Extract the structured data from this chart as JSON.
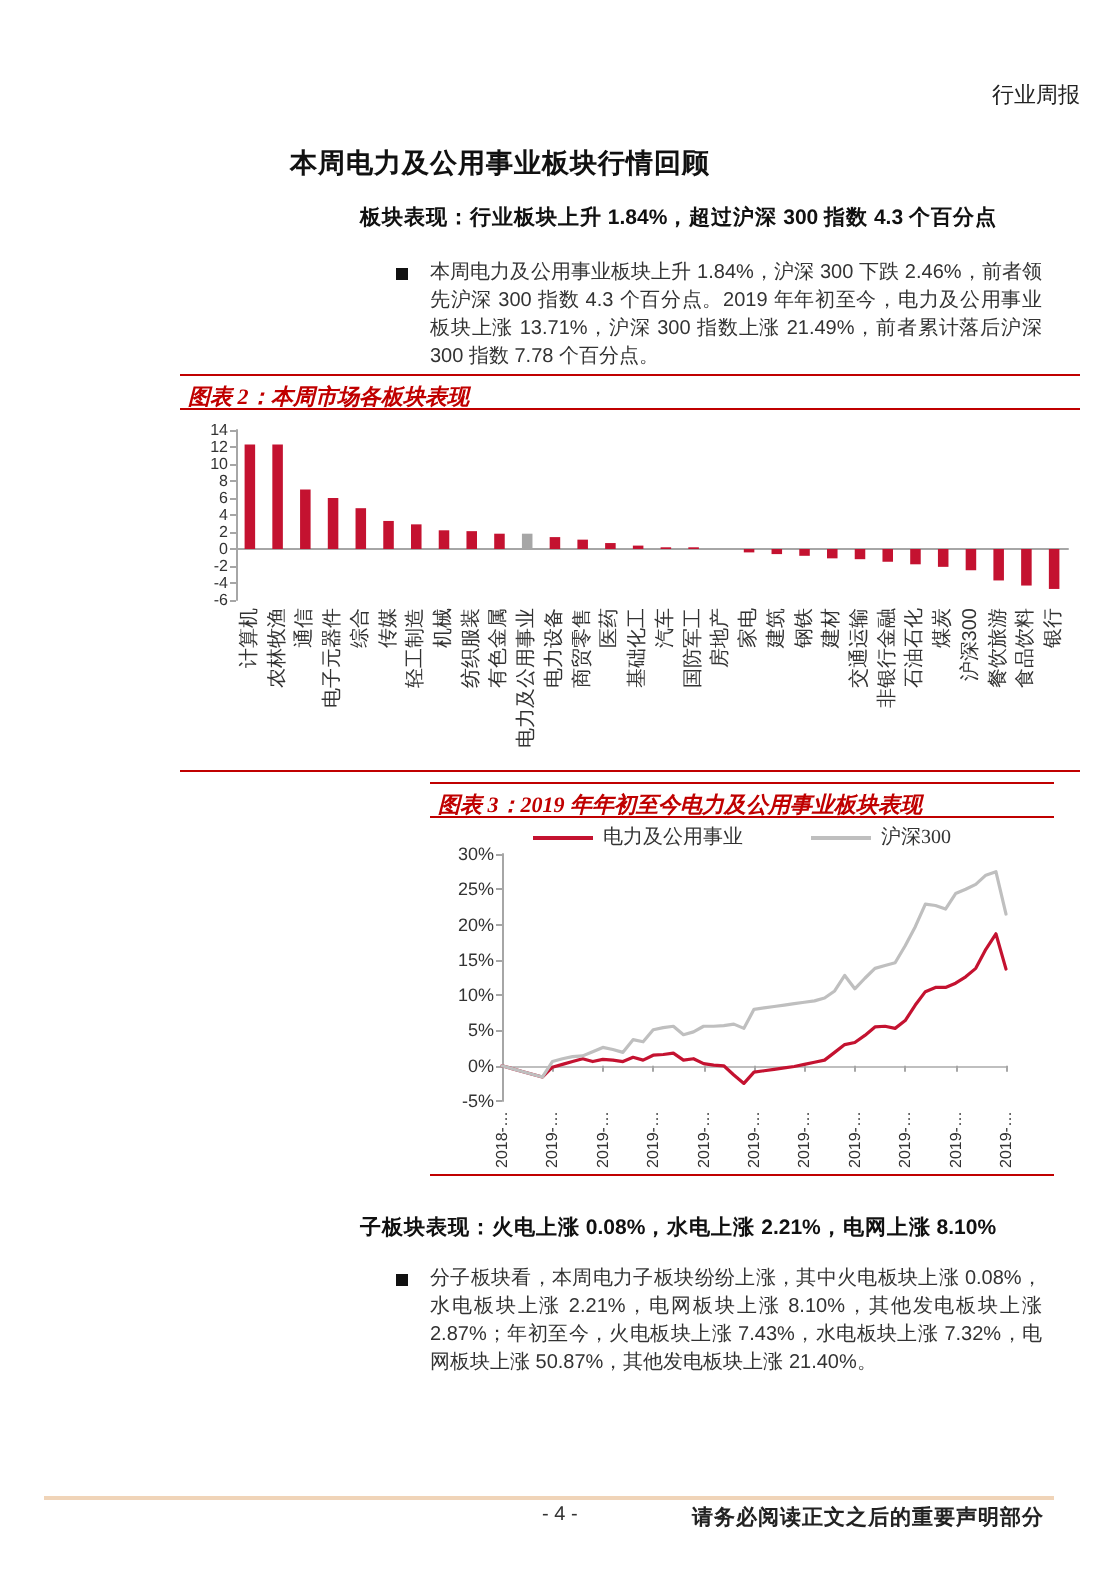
{
  "chart_data": [
    {
      "type": "bar",
      "title": "图表 2：本周市场各板块表现",
      "categories": [
        "计算机",
        "农林牧渔",
        "通信",
        "电子元器件",
        "综合",
        "传媒",
        "轻工制造",
        "机械",
        "纺织服装",
        "有色金属",
        "电力及公用事业",
        "电力设备",
        "商贸零售",
        "医药",
        "基础化工",
        "汽车",
        "国防军工",
        "房地产",
        "家电",
        "建筑",
        "钢铁",
        "建材",
        "交通运输",
        "非银行金融",
        "石油石化",
        "煤炭",
        "沪深300",
        "餐饮旅游",
        "食品饮料",
        "银行"
      ],
      "values": [
        12.3,
        12.3,
        7.0,
        6.0,
        4.8,
        3.3,
        2.9,
        2.2,
        2.1,
        1.8,
        1.8,
        1.4,
        1.1,
        0.7,
        0.4,
        0.2,
        0.2,
        0.0,
        -0.4,
        -0.6,
        -0.8,
        -1.1,
        -1.2,
        -1.5,
        -1.8,
        -2.1,
        -2.5,
        -3.7,
        -4.3,
        -4.7
      ],
      "colors": [
        "#c41230",
        "#c41230",
        "#c41230",
        "#c41230",
        "#c41230",
        "#c41230",
        "#c41230",
        "#c41230",
        "#c41230",
        "#c41230",
        "#a6a6a6",
        "#c41230",
        "#c41230",
        "#c41230",
        "#c41230",
        "#c41230",
        "#c41230",
        "#c41230",
        "#c41230",
        "#c41230",
        "#c41230",
        "#c41230",
        "#c41230",
        "#c41230",
        "#c41230",
        "#c41230",
        "#c41230",
        "#c41230",
        "#c41230",
        "#c41230"
      ],
      "ylim": [
        -6,
        14
      ],
      "yticks": [
        -6,
        -4,
        -2,
        0,
        2,
        4,
        6,
        8,
        10,
        12,
        14
      ],
      "annotations": [
        "行业周报",
        "本周电力及公用事业板块行情回顾",
        "板块表现：行业板块上升 1.84%，超过沪深 300 指数 4.3 个百分点",
        "本周电力及公用事业板块上升 1.84%，沪深 300 下跌 2.46%，前者领先沪深 300 指数 4.3 个百分点。2019 年年初至今，电力及公用事业板块上涨 13.71%，沪深 300 指数上涨 21.49%，前者累计落后沪深 300 指数 7.78 个百分点。"
      ]
    },
    {
      "type": "line",
      "title": "图表 3：2019 年年初至今电力及公用事业板块表现",
      "categories": [
        "2018-…",
        null,
        null,
        null,
        null,
        "2019-…",
        null,
        null,
        null,
        null,
        "2019-…",
        null,
        null,
        null,
        null,
        "2019-…",
        null,
        null,
        null,
        null,
        "2019-…",
        null,
        null,
        null,
        null,
        "2019-…",
        null,
        null,
        null,
        null,
        "2019-…",
        null,
        null,
        null,
        null,
        "2019-…",
        null,
        null,
        null,
        null,
        "2019-…",
        null,
        null,
        null,
        null,
        "2019-…",
        null,
        null,
        null,
        null,
        "2019-…"
      ],
      "series": [
        {
          "name": "电力及公用事业",
          "color": "#c41230",
          "values": [
            0,
            -0.4,
            -0.8,
            -1.2,
            -1.6,
            -0.2,
            0.2,
            0.6,
            1.0,
            0.6,
            0.9,
            0.8,
            0.6,
            1.2,
            0.8,
            1.5,
            1.6,
            1.8,
            0.8,
            1.0,
            0.3,
            0.1,
            0.0,
            -1.3,
            -2.5,
            -0.9,
            -0.7,
            -0.5,
            -0.3,
            -0.1,
            0.2,
            0.5,
            0.8,
            1.9,
            3.0,
            3.3,
            4.3,
            5.5,
            5.6,
            5.3,
            6.4,
            8.6,
            10.5,
            11.1,
            11.1,
            11.7,
            12.6,
            13.8,
            16.5,
            18.7,
            13.7
          ]
        },
        {
          "name": "沪深300",
          "color": "#bfbfbf",
          "values": [
            0,
            -0.4,
            -0.8,
            -1.2,
            -1.6,
            0.6,
            1.0,
            1.3,
            1.4,
            2.0,
            2.6,
            2.3,
            1.9,
            3.7,
            3.4,
            5.1,
            5.4,
            5.6,
            4.4,
            4.8,
            5.6,
            5.6,
            5.7,
            5.9,
            5.3,
            8.0,
            8.2,
            8.4,
            8.6,
            8.8,
            9.0,
            9.2,
            9.6,
            10.6,
            12.8,
            10.9,
            12.4,
            13.8,
            14.2,
            14.6,
            17.0,
            19.7,
            22.9,
            22.7,
            22.2,
            24.4,
            25.0,
            25.7,
            27.0,
            27.5,
            21.5
          ]
        }
      ],
      "ylim": [
        -5,
        30
      ],
      "yticks": [
        {
          "value": -5,
          "label": "-5%"
        },
        {
          "value": 0,
          "label": "0%"
        },
        {
          "value": 5,
          "label": "5%"
        },
        {
          "value": 10,
          "label": "10%"
        },
        {
          "value": 15,
          "label": "15%"
        },
        {
          "value": 20,
          "label": "20%"
        },
        {
          "value": 25,
          "label": "25%"
        },
        {
          "value": 30,
          "label": "30%"
        }
      ],
      "legend": "top",
      "marker": "none",
      "annotations": [
        "子板块表现：火电上涨 0.08%，水电上涨 2.21%，电网上涨 8.10%",
        "分子板块看，本周电力子板块纷纷上涨，其中火电板块上涨 0.08%，水电板块上涨 2.21%，电网板块上涨 8.10%，其他发电板块上涨 2.87%；年初至今，火电板块上涨 7.43%，水电板块上涨 7.32%，电网板块上涨 50.87%，其他发电板块上涨 21.40%。",
        "- 4 -",
        "请务必阅读正文之后的重要声明部分"
      ]
    }
  ]
}
